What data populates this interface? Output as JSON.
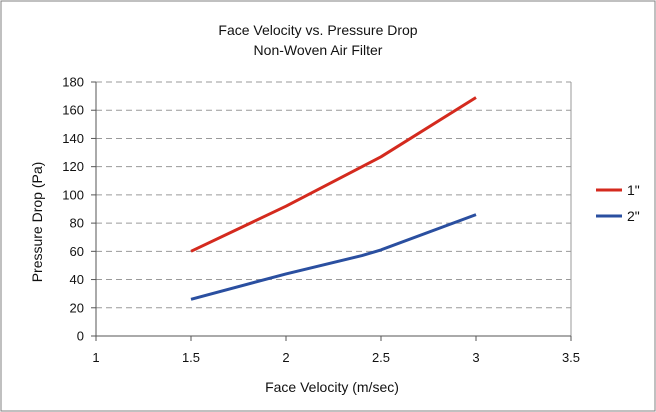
{
  "chart_data": {
    "type": "line",
    "title": "Face Velocity vs. Pressure Drop",
    "subtitle": "Non-Woven Air Filter",
    "xlabel": "Face Velocity (m/sec)",
    "ylabel": "Pressure Drop (Pa)",
    "xlim": [
      1,
      3.5
    ],
    "ylim": [
      0,
      180
    ],
    "x_ticks": [
      1,
      1.5,
      2,
      2.5,
      3,
      3.5
    ],
    "y_ticks": [
      0,
      20,
      40,
      60,
      80,
      100,
      120,
      140,
      160,
      180
    ],
    "x_tick_labels": [
      "1",
      "1.5",
      "2",
      "2.5",
      "3",
      "3.5"
    ],
    "y_tick_labels": [
      "0",
      "20",
      "40",
      "60",
      "80",
      "100",
      "120",
      "140",
      "160",
      "180"
    ],
    "grid": "horizontal dashed",
    "legend_position": "right",
    "series": [
      {
        "name": "1\"",
        "color": "#d42a1e",
        "x": [
          1.5,
          2.0,
          2.5,
          3.0
        ],
        "values": [
          60,
          92,
          127,
          169
        ]
      },
      {
        "name": "2\"",
        "color": "#2a4fa0",
        "x": [
          1.5,
          2.0,
          2.4,
          2.5,
          3.0
        ],
        "values": [
          26,
          44,
          57,
          61,
          86
        ]
      }
    ]
  }
}
